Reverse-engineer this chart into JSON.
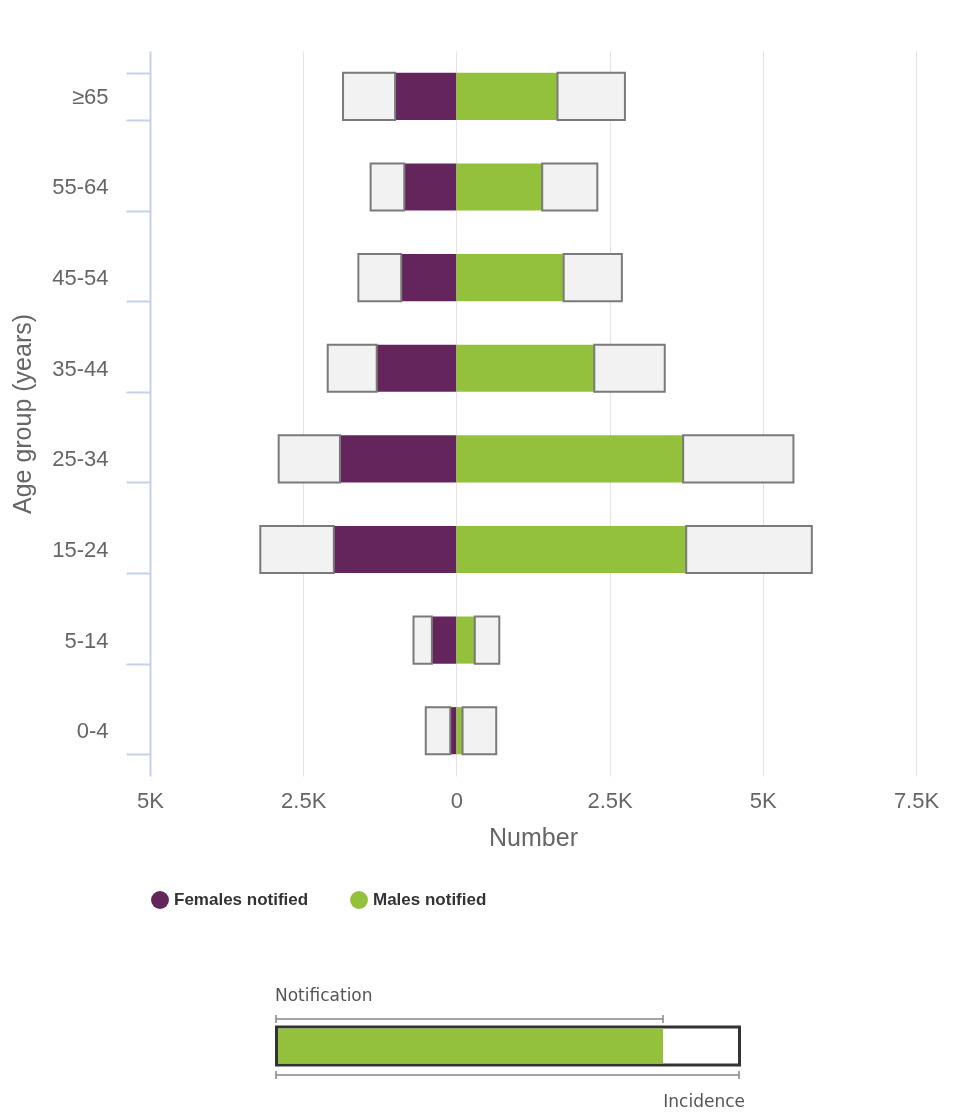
{
  "chart_data": {
    "type": "bar",
    "orientation": "horizontal",
    "xlabel": "Number",
    "ylabel": "Age group (years)",
    "categories": [
      "≥65",
      "55-64",
      "45-54",
      "35-44",
      "25-34",
      "15-24",
      "5-14",
      "0-4"
    ],
    "stacked": true,
    "series": [
      {
        "name": "Females notified",
        "color": "#64245c",
        "values": [
          -1000,
          -850,
          -900,
          -1300,
          -1900,
          -2000,
          -400,
          -100
        ]
      },
      {
        "name": "Males notified",
        "color": "#93c13c",
        "values": [
          1650,
          1400,
          1750,
          2250,
          3700,
          3750,
          300,
          100
        ]
      },
      {
        "color": "#f2f2f2",
        "values": [
          -850,
          -550,
          -700,
          -800,
          -1000,
          -1200,
          -300,
          -400
        ]
      },
      {
        "color": "#f2f2f2",
        "values": [
          1100,
          900,
          950,
          1150,
          1800,
          2050,
          400,
          550
        ]
      }
    ],
    "xlim": [
      -5000,
      7500
    ],
    "xticks": [
      {
        "value": -5000,
        "label": "5K"
      },
      {
        "value": -2500,
        "label": "2.5K"
      },
      0,
      {
        "value": 2500,
        "label": "2.5K"
      },
      {
        "value": 5000,
        "label": "5K"
      },
      {
        "value": 7500,
        "label": "7.5K"
      }
    ],
    "grid": "x",
    "legend": "bottom",
    "annotations": [
      "Notification",
      "Incidence"
    ]
  }
}
